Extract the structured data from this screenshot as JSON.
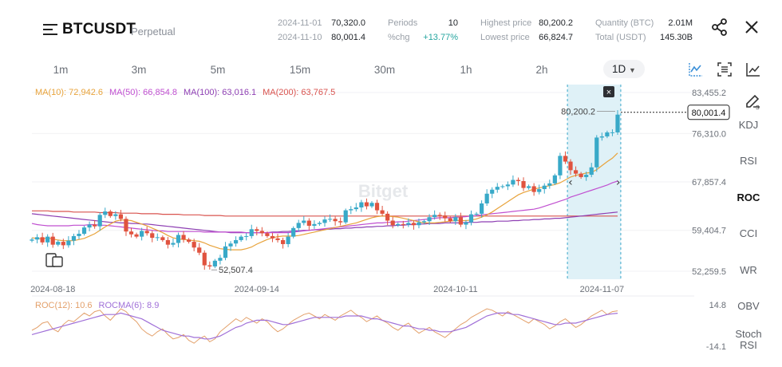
{
  "header": {
    "title": "BTCUSDT",
    "subtitle": "Perpetual",
    "stats": [
      {
        "key": "2024-11-01",
        "value": "70,320.0"
      },
      {
        "key": "2024-11-10",
        "value": "80,001.4"
      },
      {
        "key": "Periods",
        "value": "10"
      },
      {
        "key": "%chg",
        "value": "+13.77%"
      },
      {
        "key": "Highest price",
        "value": "80,200.2"
      },
      {
        "key": "Lowest price",
        "value": "66,824.7"
      },
      {
        "key": "Quantity (BTC)",
        "value": "2.01M"
      },
      {
        "key": "Total (USDT)",
        "value": "145.30B"
      }
    ]
  },
  "timeframes": [
    "1m",
    "3m",
    "5m",
    "15m",
    "30m",
    "1h",
    "2h"
  ],
  "active_timeframe": "1D",
  "indicators": [
    "KDJ",
    "RSI",
    "ROC",
    "CCI",
    "WR",
    "OBV",
    "Stoch RSI"
  ],
  "active_indicator": "ROC",
  "watermark": "Bitget",
  "chart_data": {
    "type": "candlestick",
    "ma_legend": [
      {
        "label": "MA(10): 72,942.6",
        "color": "#e8a33b"
      },
      {
        "label": "MA(50): 66,854.8",
        "color": "#c04fd0"
      },
      {
        "label": "MA(100): 63,016.1",
        "color": "#8e3fb3"
      },
      {
        "label": "MA(200): 63,767.5",
        "color": "#d9534f"
      }
    ],
    "y_ticks": [
      "83,455.2",
      "76,310.0",
      "67,857.4",
      "59,404.7",
      "52,259.5"
    ],
    "y_range": [
      52259.5,
      83455.2
    ],
    "x_ticks": [
      "2024-08-18",
      "2024-09-14",
      "2024-10-11",
      "2024-11-07"
    ],
    "current_price": "80,001.4",
    "high_marker": "80,200.2",
    "low_marker": "52,507.4",
    "selection_range": [
      "2024-11-01",
      "2024-11-10"
    ],
    "colors": {
      "up": "#38a9c8",
      "down": "#e0533f",
      "selection": "#dff1f7"
    },
    "closes": [
      57800,
      58200,
      57300,
      58300,
      56900,
      57400,
      56800,
      57600,
      58400,
      58800,
      59900,
      60400,
      60100,
      62100,
      62700,
      61900,
      62200,
      61400,
      59200,
      58700,
      58300,
      59300,
      58900,
      58100,
      58200,
      57700,
      56900,
      57200,
      58600,
      57800,
      57400,
      56400,
      55500,
      53300,
      53100,
      54100,
      54600,
      56600,
      57100,
      57700,
      58300,
      58400,
      59600,
      59300,
      58900,
      58400,
      58000,
      57700,
      57000,
      58300,
      59800,
      60700,
      61100,
      60200,
      60500,
      60700,
      61300,
      61400,
      61000,
      60800,
      62900,
      63100,
      63400,
      64300,
      63600,
      64200,
      62900,
      62300,
      61100,
      60300,
      60500,
      60400,
      60700,
      60300,
      60800,
      61000,
      61700,
      62100,
      62000,
      61500,
      61000,
      61700,
      60400,
      60800,
      62200,
      62300,
      64100,
      65800,
      66500,
      67000,
      67100,
      67400,
      68200,
      68000,
      66800,
      67100,
      66100,
      66600,
      67200,
      67600,
      69000,
      72400,
      71400,
      69900,
      69300,
      68700,
      69100,
      70400,
      75600,
      75800,
      76500,
      76500,
      79600
    ],
    "ma10": [
      58100,
      58000,
      57900,
      58100,
      57900,
      57700,
      57600,
      57600,
      57600,
      57800,
      58000,
      58400,
      58800,
      59400,
      60000,
      60500,
      61000,
      61200,
      61200,
      61100,
      60800,
      60500,
      60200,
      59800,
      59400,
      59000,
      58500,
      58100,
      57900,
      57800,
      57700,
      57600,
      57500,
      57200,
      56800,
      56500,
      56200,
      56100,
      56000,
      56000,
      56000,
      56200,
      56500,
      57000,
      57400,
      57800,
      58100,
      58300,
      58400,
      58400,
      58400,
      58500,
      58700,
      58900,
      59100,
      59300,
      59500,
      59700,
      59900,
      60100,
      60300,
      60500,
      60700,
      61000,
      61300,
      61600,
      61800,
      61900,
      61900,
      61800,
      61700,
      61500,
      61300,
      61100,
      60900,
      60700,
      60700,
      60700,
      60800,
      60900,
      61000,
      61100,
      61100,
      61100,
      61200,
      61400,
      61700,
      62100,
      62600,
      63200,
      63800,
      64400,
      65000,
      65600,
      66000,
      66300,
      66600,
      66800,
      67000,
      67200,
      67400,
      67700,
      68200,
      68700,
      69000,
      69200,
      69400,
      69500,
      70000,
      70700,
      71400,
      72000,
      72900
    ],
    "ma50": [
      60600,
      60400,
      60300,
      60200,
      60200,
      60200,
      60200,
      60200,
      60300,
      60300,
      60300,
      60400,
      60400,
      60300,
      60300,
      60200,
      60100,
      60000,
      59900,
      59800,
      59700,
      59600,
      59500,
      59400,
      59300,
      59300,
      59200,
      59200,
      59200,
      59200,
      59200,
      59200,
      59200,
      59100,
      59100,
      59100,
      59100,
      59100,
      59100,
      59100,
      59100,
      59000,
      59000,
      59000,
      59000,
      59000,
      59000,
      59000,
      59000,
      59000,
      59100,
      59200,
      59300,
      59400,
      59500,
      59600,
      59700,
      59800,
      59900,
      60000,
      60100,
      60200,
      60300,
      60400,
      60500,
      60600,
      60700,
      60700,
      60800,
      60800,
      60900,
      60900,
      61000,
      61100,
      61200,
      61300,
      61400,
      61500,
      61600,
      61600,
      61600,
      61700,
      61700,
      61800,
      61900,
      62000,
      62100,
      62200,
      62300,
      62400,
      62500,
      62600,
      62700,
      62800,
      62900,
      63000,
      63100,
      63300,
      63600,
      63900,
      64200,
      64500,
      64800,
      65200,
      65500,
      65800,
      66100,
      66400,
      66700,
      67000,
      67300,
      67700,
      68000
    ],
    "ma100": [
      62300,
      62200,
      62100,
      62000,
      61900,
      61800,
      61700,
      61600,
      61500,
      61400,
      61300,
      61200,
      61100,
      61000,
      60900,
      60800,
      60800,
      60700,
      60700,
      60600,
      60600,
      60500,
      60500,
      60400,
      60300,
      60200,
      60100,
      60000,
      59900,
      59800,
      59700,
      59600,
      59500,
      59400,
      59300,
      59200,
      59100,
      59100,
      59000,
      59000,
      59000,
      59000,
      59000,
      59000,
      59000,
      59000,
      59100,
      59100,
      59200,
      59200,
      59300,
      59300,
      59400,
      59400,
      59500,
      59500,
      59600,
      59600,
      59700,
      59700,
      59800,
      59800,
      59900,
      59900,
      60000,
      60000,
      60100,
      60100,
      60200,
      60200,
      60300,
      60300,
      60400,
      60400,
      60500,
      60500,
      60600,
      60600,
      60600,
      60700,
      60700,
      60700,
      60700,
      60800,
      60800,
      60800,
      60900,
      60900,
      60900,
      61000,
      61000,
      61000,
      61100,
      61100,
      61200,
      61200,
      61300,
      61300,
      61400,
      61400,
      61500,
      61500,
      61600,
      61700,
      61800,
      61900,
      62000,
      62100,
      62200,
      62300,
      62400,
      62500,
      62600
    ],
    "ma200": [
      62800,
      62800,
      62800,
      62800,
      62700,
      62700,
      62700,
      62700,
      62600,
      62600,
      62600,
      62600,
      62600,
      62500,
      62500,
      62500,
      62500,
      62400,
      62400,
      62400,
      62400,
      62300,
      62300,
      62300,
      62300,
      62200,
      62200,
      62200,
      62200,
      62100,
      62100,
      62100,
      62100,
      62000,
      62000,
      62000,
      62000,
      61900,
      61900,
      61900,
      61900,
      61900,
      61900,
      61900,
      61900,
      61900,
      61900,
      61900,
      61900,
      61900,
      61900,
      61900,
      61900,
      61900,
      61900,
      61900,
      61900,
      61900,
      61900,
      61900,
      61900,
      61900,
      61900,
      61900,
      61900,
      61900,
      61900,
      61900,
      61900,
      61900,
      61900,
      61900,
      61900,
      61900,
      61900,
      61900,
      61900,
      61900,
      61900,
      61900,
      61900,
      61900,
      61900,
      61900,
      61900,
      61900,
      61900,
      61900,
      61900,
      61900,
      61900,
      61900,
      61900,
      61900,
      61900,
      61900,
      61900,
      61900,
      61900,
      61900,
      61900,
      61900,
      61900,
      61900,
      61900,
      61900,
      61900,
      61900,
      61900,
      61900,
      61900,
      61900,
      61900
    ],
    "roc": {
      "legend": [
        {
          "label": "ROC(12): 10.6",
          "color": "#e3a06a"
        },
        {
          "label": "ROCMA(6): 8.9",
          "color": "#a070d8"
        }
      ],
      "y_ticks": [
        "14.8",
        "-14.1"
      ],
      "y_range": [
        -14.1,
        14.8
      ],
      "roc": [
        -3,
        -1,
        2,
        3,
        -2,
        -4,
        1,
        4,
        3,
        6,
        9,
        7,
        10,
        11,
        7,
        4,
        8,
        12,
        10,
        6,
        3,
        -2,
        -5,
        -7,
        -4,
        -2,
        -6,
        -9,
        -8,
        -6,
        -10,
        -12,
        -9,
        -7,
        -11,
        -9,
        -4,
        -1,
        2,
        5,
        3,
        6,
        4,
        2,
        5,
        3,
        -1,
        -4,
        -2,
        1,
        4,
        6,
        8,
        9,
        7,
        5,
        8,
        6,
        4,
        7,
        9,
        11,
        8,
        6,
        3,
        5,
        7,
        4,
        2,
        -1,
        -3,
        0,
        2,
        -2,
        -5,
        -3,
        -1,
        -4,
        -6,
        -8,
        -5,
        -2,
        1,
        3,
        6,
        8,
        10,
        12,
        11,
        9,
        7,
        10,
        8,
        6,
        4,
        2,
        5,
        3,
        1,
        -2,
        0,
        3,
        5,
        2,
        -1,
        1,
        4,
        7,
        9,
        11,
        8,
        10,
        10.6
      ],
      "rocma": [
        -6,
        -5,
        -4,
        -3,
        -2,
        -1,
        0,
        1,
        2,
        3,
        4,
        5,
        6,
        7,
        8,
        8,
        8,
        9,
        8,
        7,
        6,
        5,
        3,
        1,
        -1,
        -3,
        -4,
        -5,
        -6,
        -7,
        -7,
        -8,
        -8,
        -9,
        -9,
        -8,
        -7,
        -5,
        -3,
        -1,
        0,
        2,
        3,
        4,
        4,
        4,
        3,
        2,
        1,
        1,
        2,
        3,
        4,
        5,
        6,
        6,
        6,
        6,
        6,
        6,
        7,
        7,
        7,
        7,
        6,
        5,
        5,
        4,
        3,
        2,
        1,
        0,
        0,
        -1,
        -2,
        -2,
        -3,
        -3,
        -4,
        -4,
        -4,
        -3,
        -2,
        -1,
        1,
        3,
        5,
        7,
        8,
        9,
        9,
        9,
        8,
        8,
        7,
        6,
        5,
        4,
        3,
        2,
        1,
        1,
        2,
        2,
        2,
        3,
        4,
        5,
        6,
        7,
        8,
        8.5,
        8.9
      ]
    }
  }
}
